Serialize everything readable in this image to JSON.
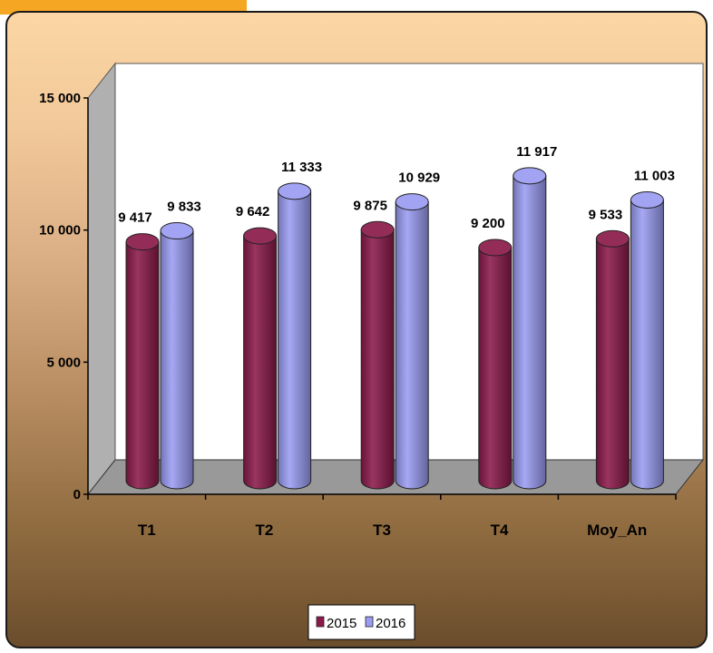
{
  "chart_data": {
    "type": "bar",
    "categories": [
      "T1",
      "T2",
      "T3",
      "T4",
      "Moy_An"
    ],
    "series": [
      {
        "name": "2015",
        "values": [
          9417,
          9642,
          9875,
          9200,
          9533
        ],
        "labels": [
          "9 417",
          "9 642",
          "9 875",
          "9 200",
          "9 533"
        ],
        "color": "#8b1a4a"
      },
      {
        "name": "2016",
        "values": [
          9833,
          11333,
          10929,
          11917,
          11003
        ],
        "labels": [
          "9 833",
          "11 333",
          "10 929",
          "11 917",
          "11 003"
        ],
        "color": "#9a9cf2"
      }
    ],
    "yticks": [
      0,
      5000,
      10000,
      15000
    ],
    "ytick_labels": [
      "0",
      "5 000",
      "10 000",
      "15 000"
    ],
    "ylim": [
      0,
      15000
    ],
    "grid": false,
    "legend_position": "bottom-center",
    "style": "3d-cylinder"
  },
  "colors": {
    "accent_tab": "#f5a623",
    "plot_wall": "#ffffff",
    "plot_floor": "#999999",
    "plot_side": "#b0b0b0"
  }
}
